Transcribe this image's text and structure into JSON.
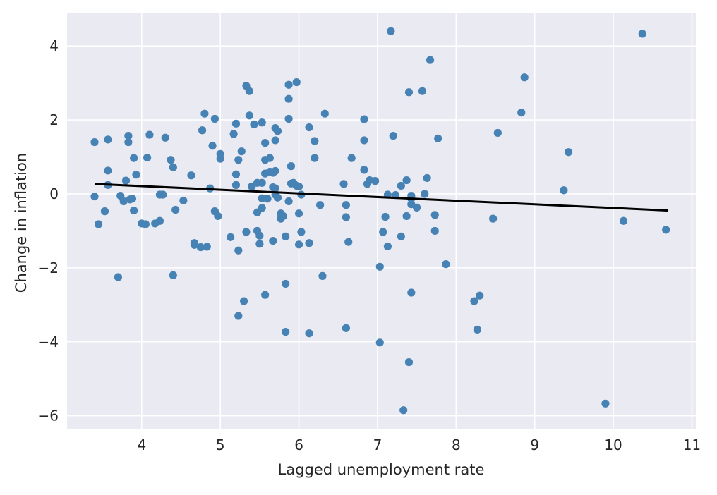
{
  "chart_data": {
    "type": "scatter",
    "title": "",
    "xlabel": "Lagged unemployment rate",
    "ylabel": "Change in inflation",
    "xlim": [
      3.05,
      11.05
    ],
    "ylim": [
      -6.35,
      4.9
    ],
    "xticks": [
      4,
      5,
      6,
      7,
      8,
      9,
      10,
      11
    ],
    "yticks": [
      -6,
      -4,
      -2,
      0,
      2,
      4
    ],
    "xtick_labels": [
      "4",
      "5",
      "6",
      "7",
      "8",
      "9",
      "10",
      "11"
    ],
    "ytick_labels": [
      "−6",
      "−4",
      "−2",
      "0",
      "2",
      "4"
    ],
    "grid": true,
    "background": "#eaeaf2",
    "point_color": "#4682b4",
    "line_color": "#000000",
    "regression_line": {
      "x": [
        3.4,
        10.7
      ],
      "y": [
        0.27,
        -0.45
      ]
    },
    "points": [
      [
        3.4,
        1.4
      ],
      [
        3.4,
        -0.07
      ],
      [
        3.45,
        -0.82
      ],
      [
        3.53,
        -0.47
      ],
      [
        3.57,
        1.47
      ],
      [
        3.57,
        0.63
      ],
      [
        3.57,
        0.24
      ],
      [
        3.7,
        -2.25
      ],
      [
        3.73,
        -0.05
      ],
      [
        3.77,
        -0.2
      ],
      [
        3.8,
        0.36
      ],
      [
        3.83,
        1.57
      ],
      [
        3.83,
        1.4
      ],
      [
        3.85,
        -0.15
      ],
      [
        3.88,
        -0.13
      ],
      [
        3.9,
        0.97
      ],
      [
        3.9,
        -0.45
      ],
      [
        3.93,
        0.52
      ],
      [
        4.0,
        -0.8
      ],
      [
        4.05,
        -0.82
      ],
      [
        4.07,
        0.98
      ],
      [
        4.1,
        1.6
      ],
      [
        4.17,
        -0.8
      ],
      [
        4.23,
        -0.73
      ],
      [
        4.23,
        -0.02
      ],
      [
        4.27,
        -0.02
      ],
      [
        4.3,
        1.52
      ],
      [
        4.37,
        0.92
      ],
      [
        4.4,
        0.72
      ],
      [
        4.4,
        -2.2
      ],
      [
        4.43,
        -0.43
      ],
      [
        4.53,
        -0.18
      ],
      [
        4.63,
        0.5
      ],
      [
        4.67,
        -1.33
      ],
      [
        4.67,
        -1.38
      ],
      [
        4.75,
        -1.44
      ],
      [
        4.77,
        1.72
      ],
      [
        4.8,
        2.17
      ],
      [
        4.83,
        -1.43
      ],
      [
        4.87,
        0.15
      ],
      [
        4.9,
        1.3
      ],
      [
        4.93,
        2.03
      ],
      [
        4.93,
        -0.47
      ],
      [
        4.97,
        -0.6
      ],
      [
        5.0,
        1.08
      ],
      [
        5.0,
        0.95
      ],
      [
        5.13,
        -1.17
      ],
      [
        5.17,
        1.62
      ],
      [
        5.2,
        1.9
      ],
      [
        5.2,
        0.53
      ],
      [
        5.2,
        0.24
      ],
      [
        5.23,
        -1.53
      ],
      [
        5.23,
        -3.3
      ],
      [
        5.23,
        0.92
      ],
      [
        5.27,
        1.15
      ],
      [
        5.3,
        -2.9
      ],
      [
        5.33,
        2.92
      ],
      [
        5.33,
        -1.03
      ],
      [
        5.37,
        2.78
      ],
      [
        5.37,
        2.12
      ],
      [
        5.4,
        0.2
      ],
      [
        5.43,
        1.88
      ],
      [
        5.47,
        0.3
      ],
      [
        5.47,
        -0.5
      ],
      [
        5.47,
        -1.0
      ],
      [
        5.5,
        -1.13
      ],
      [
        5.5,
        -1.35
      ],
      [
        5.53,
        1.93
      ],
      [
        5.53,
        0.3
      ],
      [
        5.53,
        -0.38
      ],
      [
        5.53,
        -0.12
      ],
      [
        5.57,
        1.38
      ],
      [
        5.57,
        0.92
      ],
      [
        5.57,
        0.55
      ],
      [
        5.57,
        -2.73
      ],
      [
        5.6,
        -0.13
      ],
      [
        5.63,
        0.97
      ],
      [
        5.63,
        0.6
      ],
      [
        5.67,
        0.57
      ],
      [
        5.67,
        0.18
      ],
      [
        5.67,
        -1.27
      ],
      [
        5.7,
        1.78
      ],
      [
        5.7,
        1.45
      ],
      [
        5.7,
        0.62
      ],
      [
        5.7,
        0.15
      ],
      [
        5.7,
        -0.02
      ],
      [
        5.73,
        1.7
      ],
      [
        5.73,
        -0.1
      ],
      [
        5.77,
        -0.53
      ],
      [
        5.77,
        -0.67
      ],
      [
        5.8,
        -0.6
      ],
      [
        5.83,
        -1.15
      ],
      [
        5.83,
        -2.43
      ],
      [
        5.83,
        -3.73
      ],
      [
        5.87,
        2.95
      ],
      [
        5.87,
        2.57
      ],
      [
        5.87,
        2.03
      ],
      [
        5.87,
        -0.2
      ],
      [
        5.9,
        0.75
      ],
      [
        5.9,
        0.28
      ],
      [
        5.93,
        0.3
      ],
      [
        5.97,
        3.02
      ],
      [
        5.97,
        0.22
      ],
      [
        6.0,
        0.2
      ],
      [
        6.0,
        -0.53
      ],
      [
        6.0,
        -1.37
      ],
      [
        6.03,
        -0.02
      ],
      [
        6.03,
        -1.03
      ],
      [
        6.13,
        1.8
      ],
      [
        6.13,
        -1.33
      ],
      [
        6.13,
        -3.77
      ],
      [
        6.2,
        1.43
      ],
      [
        6.2,
        0.97
      ],
      [
        6.27,
        -0.3
      ],
      [
        6.3,
        -2.22
      ],
      [
        6.33,
        2.17
      ],
      [
        6.57,
        0.27
      ],
      [
        6.6,
        -0.3
      ],
      [
        6.6,
        -0.63
      ],
      [
        6.6,
        -3.63
      ],
      [
        6.63,
        -1.3
      ],
      [
        6.67,
        0.97
      ],
      [
        6.83,
        1.45
      ],
      [
        6.83,
        0.65
      ],
      [
        6.83,
        2.02
      ],
      [
        6.87,
        0.27
      ],
      [
        6.9,
        0.37
      ],
      [
        6.97,
        0.35
      ],
      [
        7.03,
        -1.97
      ],
      [
        7.03,
        -4.02
      ],
      [
        7.07,
        -1.03
      ],
      [
        7.1,
        -0.62
      ],
      [
        7.13,
        -1.42
      ],
      [
        7.13,
        -0.02
      ],
      [
        7.17,
        4.4
      ],
      [
        7.2,
        1.57
      ],
      [
        7.23,
        -0.03
      ],
      [
        7.3,
        -1.15
      ],
      [
        7.3,
        0.22
      ],
      [
        7.33,
        -5.85
      ],
      [
        7.37,
        0.37
      ],
      [
        7.37,
        -0.6
      ],
      [
        7.4,
        -4.55
      ],
      [
        7.4,
        2.75
      ],
      [
        7.43,
        -0.13
      ],
      [
        7.43,
        -0.05
      ],
      [
        7.43,
        -0.28
      ],
      [
        7.43,
        -2.67
      ],
      [
        7.5,
        -0.37
      ],
      [
        7.57,
        2.78
      ],
      [
        7.6,
        0.0
      ],
      [
        7.63,
        0.43
      ],
      [
        7.67,
        3.62
      ],
      [
        7.73,
        -0.57
      ],
      [
        7.73,
        -1.0
      ],
      [
        7.77,
        1.5
      ],
      [
        7.87,
        -1.9
      ],
      [
        8.23,
        -2.9
      ],
      [
        8.27,
        -3.67
      ],
      [
        8.3,
        -2.75
      ],
      [
        8.47,
        -0.67
      ],
      [
        8.53,
        1.65
      ],
      [
        8.83,
        2.2
      ],
      [
        8.87,
        3.15
      ],
      [
        9.37,
        0.1
      ],
      [
        9.43,
        1.13
      ],
      [
        9.9,
        -5.67
      ],
      [
        10.13,
        -0.73
      ],
      [
        10.37,
        4.33
      ],
      [
        10.67,
        -0.97
      ]
    ]
  }
}
